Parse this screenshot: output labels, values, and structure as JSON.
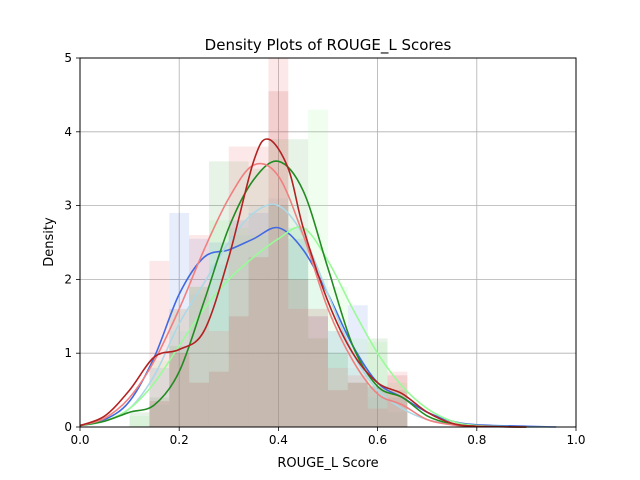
{
  "chart_data": {
    "type": "area",
    "title": "Density Plots of ROUGE_L Scores",
    "xlabel": "ROUGE_L Score",
    "ylabel": "Density",
    "xlim": [
      0.0,
      1.0
    ],
    "ylim": [
      0,
      5
    ],
    "x_ticks": [
      "0.0",
      "0.2",
      "0.4",
      "0.6",
      "0.8",
      "1.0"
    ],
    "y_ticks": [
      "0",
      "1",
      "2",
      "3",
      "4",
      "5"
    ],
    "grid": true,
    "histogram_bin_width": 0.04,
    "histograms": [
      {
        "color": "#4169e1",
        "alpha": 0.12,
        "bins": [
          [
            0.14,
            0.8
          ],
          [
            0.18,
            2.9
          ],
          [
            0.22,
            2.55
          ],
          [
            0.26,
            2.5
          ],
          [
            0.3,
            2.8
          ],
          [
            0.34,
            2.9
          ],
          [
            0.38,
            3.0
          ],
          [
            0.42,
            2.55
          ],
          [
            0.46,
            1.5
          ],
          [
            0.5,
            1.3
          ],
          [
            0.54,
            1.65
          ],
          [
            0.58,
            0.55
          ],
          [
            0.62,
            0.4
          ]
        ]
      },
      {
        "color": "#add8e6",
        "alpha": 0.15,
        "bins": [
          [
            0.14,
            0.3
          ],
          [
            0.18,
            1.3
          ],
          [
            0.22,
            1.8
          ],
          [
            0.26,
            2.2
          ],
          [
            0.3,
            2.6
          ],
          [
            0.34,
            3.0
          ],
          [
            0.38,
            3.1
          ],
          [
            0.42,
            2.7
          ],
          [
            0.46,
            2.0
          ],
          [
            0.5,
            1.3
          ],
          [
            0.54,
            0.8
          ],
          [
            0.58,
            0.4
          ],
          [
            0.62,
            0.2
          ]
        ]
      },
      {
        "color": "#98fb98",
        "alpha": 0.15,
        "bins": [
          [
            0.1,
            0.15
          ],
          [
            0.14,
            0.9
          ],
          [
            0.18,
            1.6
          ],
          [
            0.22,
            1.9
          ],
          [
            0.26,
            2.8
          ],
          [
            0.3,
            2.7
          ],
          [
            0.34,
            2.6
          ],
          [
            0.38,
            3.0
          ],
          [
            0.42,
            2.7
          ],
          [
            0.46,
            4.3
          ],
          [
            0.5,
            1.9
          ],
          [
            0.54,
            1.2
          ],
          [
            0.58,
            1.15
          ],
          [
            0.62,
            0.6
          ]
        ]
      },
      {
        "color": "#228b22",
        "alpha": 0.1,
        "bins": [
          [
            0.1,
            0.2
          ],
          [
            0.14,
            0.4
          ],
          [
            0.18,
            1.1
          ],
          [
            0.22,
            1.9
          ],
          [
            0.26,
            3.6
          ],
          [
            0.3,
            3.6
          ],
          [
            0.34,
            3.5
          ],
          [
            0.38,
            3.9
          ],
          [
            0.42,
            3.9
          ],
          [
            0.46,
            1.2
          ],
          [
            0.5,
            1.0
          ],
          [
            0.54,
            0.6
          ],
          [
            0.58,
            1.2
          ],
          [
            0.62,
            0.5
          ]
        ]
      },
      {
        "color": "#f08080",
        "alpha": 0.18,
        "bins": [
          [
            0.14,
            2.25
          ],
          [
            0.18,
            1.6
          ],
          [
            0.22,
            2.6
          ],
          [
            0.26,
            1.3
          ],
          [
            0.3,
            3.8
          ],
          [
            0.34,
            3.8
          ],
          [
            0.38,
            5.0
          ],
          [
            0.42,
            1.6
          ],
          [
            0.46,
            1.5
          ],
          [
            0.5,
            0.8
          ],
          [
            0.54,
            0.7
          ],
          [
            0.58,
            0.25
          ],
          [
            0.62,
            0.75
          ]
        ]
      },
      {
        "color": "#b22222",
        "alpha": 0.12,
        "bins": [
          [
            0.14,
            0.35
          ],
          [
            0.18,
            1.0
          ],
          [
            0.22,
            0.6
          ],
          [
            0.26,
            0.75
          ],
          [
            0.3,
            1.5
          ],
          [
            0.34,
            2.3
          ],
          [
            0.38,
            4.55
          ],
          [
            0.42,
            2.0
          ],
          [
            0.46,
            1.6
          ],
          [
            0.5,
            0.5
          ],
          [
            0.54,
            0.6
          ],
          [
            0.58,
            0.55
          ],
          [
            0.62,
            0.7
          ]
        ]
      }
    ],
    "series": [
      {
        "color": "#4169e1",
        "x": [
          0.0,
          0.05,
          0.1,
          0.15,
          0.2,
          0.25,
          0.3,
          0.35,
          0.4,
          0.45,
          0.5,
          0.55,
          0.6,
          0.65,
          0.7,
          0.75,
          0.8,
          0.9,
          0.96
        ],
        "values": [
          0.02,
          0.1,
          0.35,
          0.95,
          1.8,
          2.3,
          2.4,
          2.55,
          2.7,
          2.4,
          1.8,
          1.1,
          0.6,
          0.4,
          0.2,
          0.08,
          0.03,
          0.01,
          0.0
        ]
      },
      {
        "color": "#add8e6",
        "x": [
          0.0,
          0.05,
          0.1,
          0.15,
          0.2,
          0.25,
          0.3,
          0.35,
          0.4,
          0.45,
          0.5,
          0.55,
          0.6,
          0.65,
          0.7,
          0.75,
          0.8,
          0.9,
          0.96
        ],
        "values": [
          0.02,
          0.08,
          0.25,
          0.7,
          1.4,
          1.95,
          2.5,
          2.9,
          3.0,
          2.6,
          1.8,
          1.0,
          0.5,
          0.25,
          0.1,
          0.04,
          0.01,
          0.0,
          0.0
        ]
      },
      {
        "color": "#98fb98",
        "x": [
          0.0,
          0.05,
          0.1,
          0.15,
          0.2,
          0.25,
          0.3,
          0.35,
          0.4,
          0.45,
          0.5,
          0.55,
          0.6,
          0.65,
          0.7,
          0.75,
          0.8,
          0.9
        ],
        "values": [
          0.02,
          0.08,
          0.25,
          0.6,
          1.1,
          1.6,
          2.0,
          2.3,
          2.55,
          2.7,
          2.25,
          1.6,
          1.0,
          0.55,
          0.25,
          0.08,
          0.02,
          0.0
        ]
      },
      {
        "color": "#228b22",
        "x": [
          0.0,
          0.05,
          0.1,
          0.15,
          0.2,
          0.25,
          0.3,
          0.35,
          0.4,
          0.45,
          0.5,
          0.55,
          0.6,
          0.65,
          0.7,
          0.75,
          0.8,
          0.9
        ],
        "values": [
          0.02,
          0.08,
          0.2,
          0.3,
          0.75,
          1.7,
          2.7,
          3.35,
          3.6,
          3.2,
          2.15,
          1.1,
          0.55,
          0.4,
          0.15,
          0.04,
          0.01,
          0.0
        ]
      },
      {
        "color": "#f08080",
        "x": [
          0.0,
          0.05,
          0.1,
          0.15,
          0.2,
          0.25,
          0.3,
          0.35,
          0.4,
          0.45,
          0.5,
          0.55,
          0.6,
          0.65,
          0.7,
          0.75,
          0.8,
          0.9
        ],
        "values": [
          0.02,
          0.12,
          0.4,
          0.9,
          1.6,
          2.4,
          3.1,
          3.55,
          3.4,
          2.6,
          1.6,
          0.9,
          0.45,
          0.3,
          0.1,
          0.03,
          0.01,
          0.0
        ]
      },
      {
        "color": "#b22222",
        "x": [
          0.0,
          0.05,
          0.1,
          0.15,
          0.2,
          0.25,
          0.3,
          0.35,
          0.38,
          0.42,
          0.45,
          0.5,
          0.55,
          0.6,
          0.65,
          0.7,
          0.75,
          0.8,
          0.9
        ],
        "values": [
          0.02,
          0.15,
          0.5,
          0.95,
          1.05,
          1.3,
          2.3,
          3.6,
          3.9,
          3.5,
          2.7,
          1.7,
          1.0,
          0.6,
          0.45,
          0.2,
          0.05,
          0.01,
          0.0
        ]
      }
    ]
  }
}
